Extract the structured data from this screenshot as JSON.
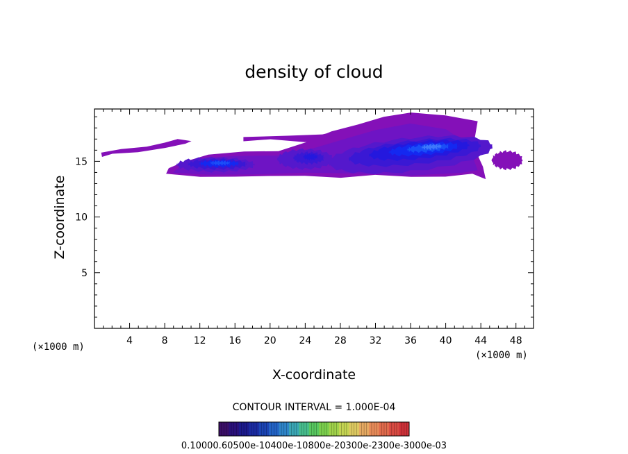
{
  "chart_data": {
    "type": "heatmap",
    "title": "density of cloud",
    "xlabel": "X-coordinate",
    "ylabel": "Z-coordinate",
    "x_unit": "(×1000 m)",
    "x_unit_right": "(×1000 m)",
    "xlim": [
      0,
      50
    ],
    "ylim": [
      0,
      19.7
    ],
    "x_ticks": [
      4,
      8,
      12,
      16,
      20,
      24,
      28,
      32,
      36,
      40,
      44,
      48
    ],
    "y_ticks": [
      5,
      10,
      15
    ],
    "contour_interval_label": "CONTOUR INTERVAL = 1.000E-04",
    "colorbar_labels_text": "0.10000.60500e-10400e-10800e-20300e-2300e-3000e-03",
    "colorbar": {
      "levels": 19,
      "colors": [
        "#3a0e66",
        "#2a107a",
        "#1c1a8c",
        "#1a2aa0",
        "#1b44b4",
        "#2262c4",
        "#2e84c8",
        "#3aa6b4",
        "#46bc8c",
        "#58c860",
        "#7ace4c",
        "#a0d24a",
        "#c4d452",
        "#dcc860",
        "#e6aa62",
        "#e68a58",
        "#e06a4c",
        "#d84a42",
        "#cc3038"
      ]
    },
    "cloud_level_colors": [
      "#8410b8",
      "#6e14c4",
      "#5418cc",
      "#3a18d4",
      "#2418de",
      "#1428f0",
      "#1a4ef8",
      "#3e78fc"
    ],
    "cloud_regions": [
      {
        "name": "left-thin-band",
        "x": [
          0.8,
          11
        ],
        "z": [
          15.5,
          17.2
        ],
        "max_level": 1
      },
      {
        "name": "left-cell",
        "x": [
          8.2,
          22
        ],
        "z": [
          13.7,
          15.5
        ],
        "max_level": 6
      },
      {
        "name": "mid-cell",
        "x": [
          18,
          28
        ],
        "z": [
          13.7,
          16.4
        ],
        "max_level": 4
      },
      {
        "name": "upper-anvil",
        "x": [
          17,
          32
        ],
        "z": [
          16.3,
          18.0
        ],
        "max_level": 1
      },
      {
        "name": "main-cell",
        "x": [
          27,
          44.6
        ],
        "z": [
          13.5,
          19.3
        ],
        "max_level": 7
      },
      {
        "name": "right-blob",
        "x": [
          45.2,
          49
        ],
        "z": [
          14.2,
          16.1
        ],
        "max_level": 1
      }
    ]
  }
}
